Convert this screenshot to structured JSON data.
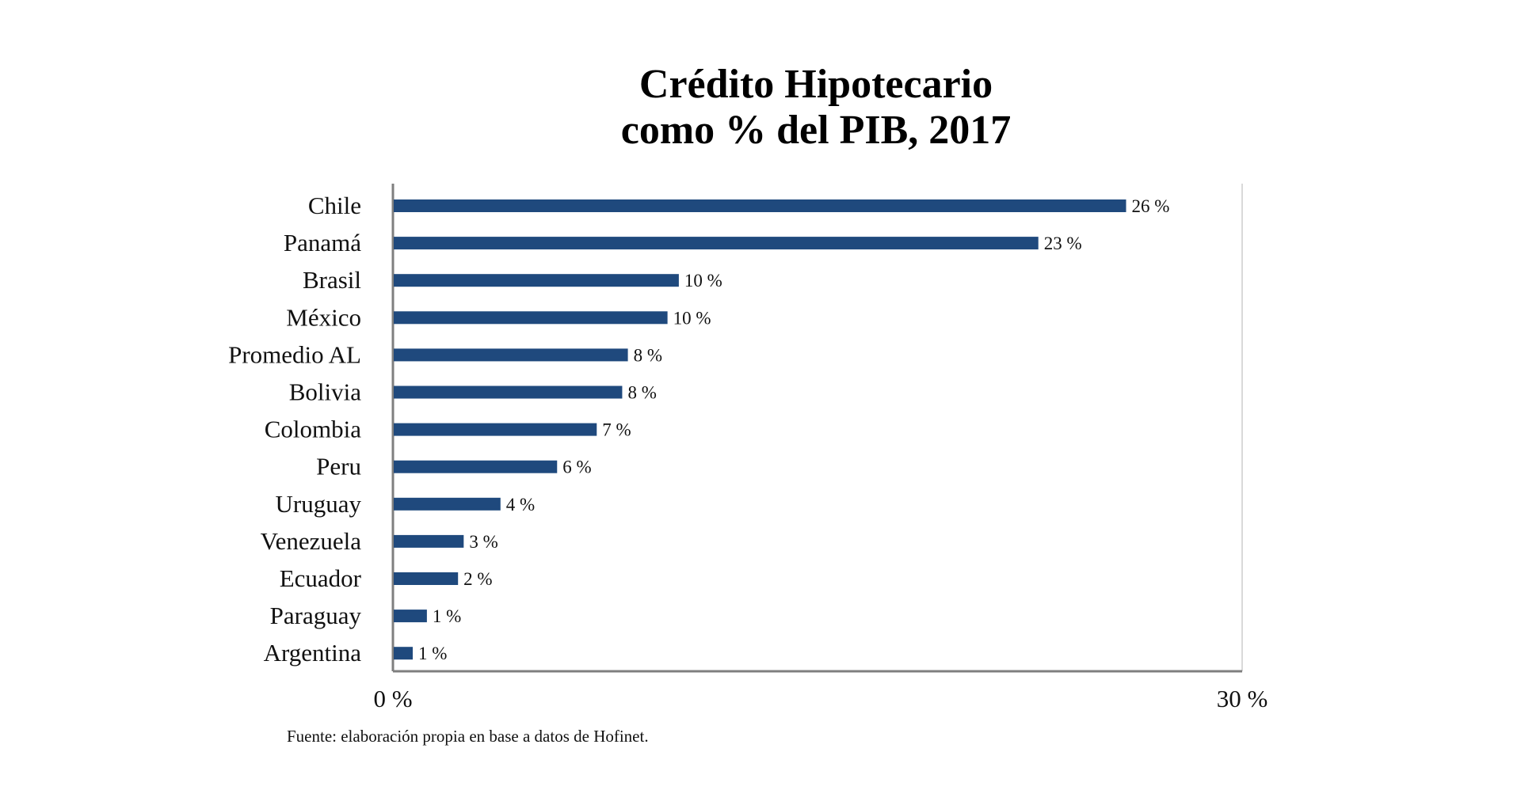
{
  "chart_data": {
    "type": "bar",
    "orientation": "horizontal",
    "title_lines": [
      "Crédito Hipotecario",
      "como % del PIB, 2017"
    ],
    "categories": [
      "Chile",
      "Panamá",
      "Brasil",
      "México",
      "Promedio AL",
      "Bolivia",
      "Colombia",
      "Peru",
      "Uruguay",
      "Venezuela",
      "Ecuador",
      "Paraguay",
      "Argentina"
    ],
    "values": [
      25.9,
      22.8,
      10.1,
      9.7,
      8.3,
      8.1,
      7.2,
      5.8,
      3.8,
      2.5,
      2.3,
      1.2,
      0.7
    ],
    "value_labels": [
      "26 %",
      "23 %",
      "10 %",
      "10 %",
      "8 %",
      "8 %",
      "7 %",
      "6 %",
      "4 %",
      "3 %",
      "2 %",
      "1 %",
      "1 %"
    ],
    "xlim": [
      0,
      30
    ],
    "x_tick_labels": [
      "0 %",
      "30 %"
    ],
    "bar_color": "#1f497d",
    "grid": false,
    "source": "Fuente: elaboración propia en base a datos de Hofinet."
  }
}
